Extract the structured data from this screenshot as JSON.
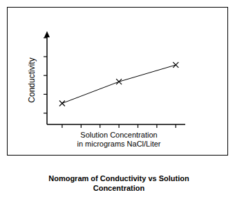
{
  "chart_data": {
    "type": "line",
    "title": "Nomogram of Conductivity vs Solution Concentration",
    "x_label": "Solution Concentration\nin micrograms NaCl/Liter",
    "y_label": "Conductivity",
    "x": [
      1,
      4,
      7
    ],
    "values": [
      1.52,
      2.67,
      3.56
    ],
    "color": "#000000",
    "marker": "x",
    "line_style": "solid",
    "xlim": [
      0.2,
      7.5
    ],
    "xticks": [
      1,
      2,
      3,
      4,
      5,
      6,
      7
    ],
    "ylim": [
      0.4,
      5.1
    ],
    "yticks": [
      1,
      2,
      3,
      4,
      5
    ],
    "grid": false,
    "tick_labels": false
  }
}
